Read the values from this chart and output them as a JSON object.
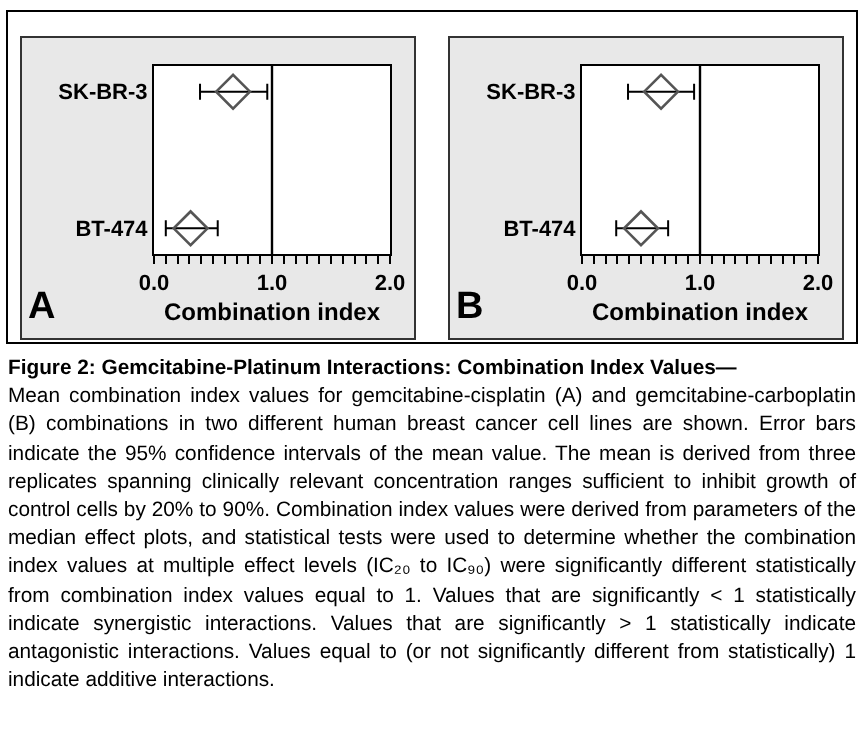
{
  "chart_data": [
    {
      "type": "scatter",
      "categories": [
        "SK-BR-3",
        "BT-474"
      ],
      "orientation": "horizontal",
      "xlabel": "Combination index",
      "values": [
        0.67,
        0.31
      ],
      "errors": [
        [
          0.39,
          0.96
        ],
        [
          0.1,
          0.54
        ]
      ],
      "color": "#555555",
      "marker": "diamond",
      "xlim": [
        0,
        2
      ],
      "xticks": [
        {
          "value": 0,
          "label": "0.0"
        },
        {
          "value": 0.1,
          "label": null
        },
        {
          "value": 0.2,
          "label": null
        },
        {
          "value": 0.3,
          "label": null
        },
        {
          "value": 0.4,
          "label": null
        },
        {
          "value": 0.5,
          "label": null
        },
        {
          "value": 0.6,
          "label": null
        },
        {
          "value": 0.7,
          "label": null
        },
        {
          "value": 0.8,
          "label": null
        },
        {
          "value": 0.9,
          "label": null
        },
        {
          "value": 1,
          "label": "1.0"
        },
        {
          "value": 1.1,
          "label": null
        },
        {
          "value": 1.2,
          "label": null
        },
        {
          "value": 1.3,
          "label": null
        },
        {
          "value": 1.4,
          "label": null
        },
        {
          "value": 1.5,
          "label": null
        },
        {
          "value": 1.6,
          "label": null
        },
        {
          "value": 1.7,
          "label": null
        },
        {
          "value": 1.8,
          "label": null
        },
        {
          "value": 1.9,
          "label": null
        },
        {
          "value": 2,
          "label": "2.0"
        }
      ],
      "ref_lines": [
        {
          "axis": "x",
          "value": 1,
          "label": null,
          "color": "#000000"
        }
      ],
      "annotations": [
        "A"
      ],
      "grid": false,
      "legend": false
    },
    {
      "type": "scatter",
      "categories": [
        "SK-BR-3",
        "BT-474"
      ],
      "orientation": "horizontal",
      "xlabel": "Combination index",
      "values": [
        0.67,
        0.5
      ],
      "errors": [
        [
          0.39,
          0.95
        ],
        [
          0.29,
          0.73
        ]
      ],
      "color": "#555555",
      "marker": "diamond",
      "xlim": [
        0,
        2
      ],
      "xticks": [
        {
          "value": 0,
          "label": "0.0"
        },
        {
          "value": 0.1,
          "label": null
        },
        {
          "value": 0.2,
          "label": null
        },
        {
          "value": 0.3,
          "label": null
        },
        {
          "value": 0.4,
          "label": null
        },
        {
          "value": 0.5,
          "label": null
        },
        {
          "value": 0.6,
          "label": null
        },
        {
          "value": 0.7,
          "label": null
        },
        {
          "value": 0.8,
          "label": null
        },
        {
          "value": 0.9,
          "label": null
        },
        {
          "value": 1,
          "label": "1.0"
        },
        {
          "value": 1.1,
          "label": null
        },
        {
          "value": 1.2,
          "label": null
        },
        {
          "value": 1.3,
          "label": null
        },
        {
          "value": 1.4,
          "label": null
        },
        {
          "value": 1.5,
          "label": null
        },
        {
          "value": 1.6,
          "label": null
        },
        {
          "value": 1.7,
          "label": null
        },
        {
          "value": 1.8,
          "label": null
        },
        {
          "value": 1.9,
          "label": null
        },
        {
          "value": 2,
          "label": "2.0"
        }
      ],
      "ref_lines": [
        {
          "axis": "x",
          "value": 1,
          "label": null,
          "color": "#000000"
        }
      ],
      "annotations": [
        "B"
      ],
      "grid": false,
      "legend": false
    },
    {
      "type": "other",
      "title": "Figure 2: Gemcitabine-Platinum Interactions: Combination Index Values—",
      "annotations": [
        "Mean combination index values for gemcitabine-cisplatin (A) and gemcitabine-carboplatin (B) combinations in two different human breast cancer cell lines are shown. Error bars indicate the 95% confidence intervals of the mean value. The mean is derived from three replicates spanning clinically relevant concentration ranges sufficient to inhibit growth of control cells by 20% to 90%. Combination index values were derived from parameters of the median effect plots, and statistical tests were used to determine whether the combination index values at multiple effect levels (IC₂₀ to IC₉₀) were significantly different statistically from combination index values equal to 1. Values that are significantly < 1 statistically indicate synergistic interactions. Values that are significantly > 1 statistically indicate antagonistic interactions. Values equal to (or not significantly different from statistically) 1 indicate additive interactions."
      ]
    }
  ]
}
